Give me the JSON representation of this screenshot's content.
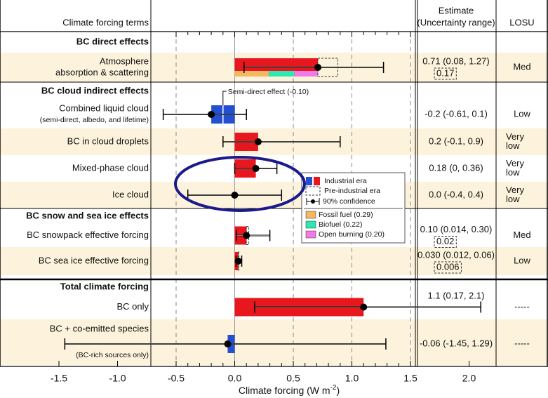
{
  "chart_data": {
    "type": "bar",
    "orientation": "horizontal",
    "header": {
      "terms": "Climate forcing terms",
      "estimate": [
        "Estimate",
        "(Uncertainty range)"
      ],
      "losu": "LOSU"
    },
    "x_label": {
      "text": "Climate forcing  (W m",
      "sup": "-2",
      "end": ")"
    },
    "xlim": [
      -1.5,
      1.5
    ],
    "xticks": [
      {
        "value": -1.5,
        "label": "-1.5"
      },
      {
        "value": -1,
        "label": "-1.0"
      },
      -0.5,
      {
        "value": 0,
        "label": "0.0"
      },
      0.5,
      {
        "value": 1,
        "label": "1.0"
      },
      1.5,
      {
        "value": 2,
        "label": "2.0"
      }
    ],
    "minor_xticks": [
      -0.4,
      -0.3,
      -0.2,
      -0.1,
      0.1,
      0.2,
      0.3,
      0.4,
      0.6,
      0.7,
      0.8,
      0.9,
      1.1,
      1.2,
      1.3,
      1.4
    ],
    "colors": {
      "positive": "#e8161d",
      "negative": "#2250d0",
      "shade": "#fdf3dc"
    },
    "legend": {
      "industrial": "Industrial era",
      "pre_industrial": "Pre-industrial era",
      "confidence": "90% confidence"
    },
    "rows": [
      {
        "kind": "section",
        "label": "BC direct effects"
      },
      {
        "label": [
          "Atmosphere",
          "absorption & scattering"
        ],
        "value": 0.71,
        "low": 0.08,
        "high": 1.27,
        "pre_industrial": 0.17,
        "estimate": "0.71 (0.08, 1.27)",
        "losu": "Med",
        "shaded": true,
        "sources": [
          {
            "label": "Fossil fuel (0.29)",
            "value": 0.29,
            "color": "#f4b860"
          },
          {
            "label": "Biofuel (0.22)",
            "value": 0.22,
            "color": "#2ee8b4"
          },
          {
            "label": "Open burning (0.20)",
            "value": 0.2,
            "color": "#f07ae6"
          }
        ]
      },
      {
        "kind": "section",
        "label": "BC cloud indirect effects"
      },
      {
        "label": [
          "Combined liquid cloud"
        ],
        "note": "(semi-direct, albedo, and lifetime)",
        "value": -0.2,
        "low": -0.61,
        "high": 0.1,
        "estimate": "-0.2 (-0.61, 0.1)",
        "losu": "Low",
        "semi_direct": -0.1,
        "semi_direct_label": "Semi-direct effect (-0.10)"
      },
      {
        "label": [
          "BC in cloud droplets"
        ],
        "value": 0.2,
        "low": -0.1,
        "high": 0.9,
        "estimate": "0.2 (-0.1, 0.9)",
        "losu": [
          "Very",
          "low"
        ],
        "shaded": true
      },
      {
        "label": [
          "Mixed-phase cloud"
        ],
        "value": 0.18,
        "low": 0,
        "high": 0.36,
        "estimate": "0.18 (0, 0.36)",
        "losu": [
          "Very",
          "low"
        ]
      },
      {
        "label": [
          "Ice cloud"
        ],
        "value": 0,
        "low": -0.4,
        "high": 0.4,
        "estimate": "0.0 (-0.4, 0.4)",
        "losu": [
          "Very",
          "low"
        ],
        "shaded": true
      },
      {
        "kind": "section",
        "label": "BC snow and sea ice effects"
      },
      {
        "label": [
          "BC snowpack effective forcing"
        ],
        "value": 0.1,
        "low": 0.014,
        "high": 0.3,
        "pre_industrial": 0.02,
        "estimate": "0.10 (0.014, 0.30)",
        "losu": "Med"
      },
      {
        "label": [
          "BC sea ice effective forcing"
        ],
        "value": 0.03,
        "low": 0.012,
        "high": 0.06,
        "pre_industrial": 0.006,
        "estimate": "0.030 (0.012, 0.06)",
        "losu": "Low",
        "shaded": true
      },
      {
        "kind": "section",
        "label": "Total climate forcing"
      },
      {
        "label": [
          "BC only"
        ],
        "value": 1.1,
        "low": 0.17,
        "high": 2.1,
        "estimate": "1.1 (0.17, 2.1)",
        "losu": "-----"
      },
      {
        "label": [
          "BC + co-emitted species"
        ],
        "note": "(BC-rich sources only)",
        "value": -0.06,
        "low": -1.45,
        "high": 1.29,
        "estimate": "-0.06 (-1.45, 1.29)",
        "losu": "-----",
        "shaded": true
      }
    ]
  }
}
